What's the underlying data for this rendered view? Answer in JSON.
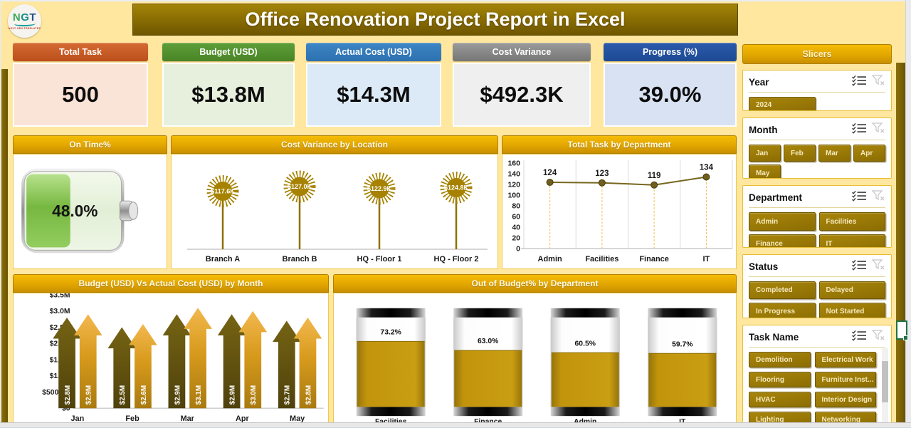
{
  "app": {
    "logo_text": "NGT",
    "logo_subtext": "NEXT GEN TEMPLATES",
    "title": "Office Renovation Project Report in Excel"
  },
  "kpis": [
    {
      "label": "Total Task",
      "value": "500",
      "header_top": "#D56A33",
      "header_bottom": "#BC4F1C",
      "body": "#FAE3D7"
    },
    {
      "label": "Budget (USD)",
      "value": "$13.8M",
      "header_top": "#5E9F38",
      "header_bottom": "#498427",
      "body": "#E6F0DD"
    },
    {
      "label": "Actual Cost (USD)",
      "value": "$14.3M",
      "header_top": "#3E86C6",
      "header_bottom": "#2C70AF",
      "body": "#DCE9F6"
    },
    {
      "label": "Cost Variance",
      "value": "$492.3K",
      "header_top": "#9B9B9B",
      "header_bottom": "#767676",
      "body": "#EFEFEF"
    },
    {
      "label": "Progress (%)",
      "value": "39.0%",
      "header_top": "#2A5AAB",
      "header_bottom": "#1E4A94",
      "body": "#D9E2F3"
    }
  ],
  "chart_data": [
    {
      "id": "on-time-gauge",
      "type": "gauge",
      "style": "horizontal-battery",
      "title": "On Time%",
      "value": 48.0,
      "value_label": "48.0%",
      "min": 0,
      "max": 100,
      "fill_color": "#8CC63E"
    },
    {
      "id": "cost-variance-by-location",
      "type": "lollipop",
      "title": "Cost Variance by Location",
      "categories": [
        "Branch A",
        "Branch B",
        "HQ - Floor 1",
        "HQ - Floor 2"
      ],
      "values": [
        117.6,
        127.0,
        122.9,
        124.8
      ],
      "labels": [
        "$117.6K",
        "$127.0K",
        "$122.9K",
        "$124.8K"
      ],
      "accent": "#A68200"
    },
    {
      "id": "total-task-by-department",
      "type": "line",
      "title": "Total Task by Department",
      "categories": [
        "Admin",
        "Facilities",
        "Finance",
        "IT"
      ],
      "values": [
        124,
        123,
        119,
        134
      ],
      "ylim": [
        0,
        160
      ],
      "ytick_step": 20,
      "grid": "vertical",
      "line_color": "#77661F"
    },
    {
      "id": "budget-vs-actual-by-month",
      "type": "bar",
      "subtype": "arrow",
      "title": "Budget (USD) Vs Actual Cost (USD) by Month",
      "categories": [
        "Jan",
        "Feb",
        "Mar",
        "Apr",
        "May"
      ],
      "series": [
        {
          "name": "Budget (USD)",
          "color": "#6A5A12",
          "values": [
            2.8,
            2.5,
            2.9,
            2.9,
            2.7
          ],
          "labels": [
            "$2.8M",
            "$2.5M",
            "$2.9M",
            "$2.9M",
            "$2.7M"
          ]
        },
        {
          "name": "Actual Cost (USD)",
          "color": "#D79A1C",
          "values": [
            2.9,
            2.6,
            3.1,
            3.0,
            2.8
          ],
          "labels": [
            "$2.9M",
            "$2.6M",
            "$3.1M",
            "$3.0M",
            "$2.8M"
          ]
        }
      ],
      "ylim_musd": [
        0,
        3.5
      ],
      "yticks": [
        "$0",
        "$500.0K",
        "$1.0M",
        "$1.5M",
        "$2.0M",
        "$2.5M",
        "$3.0M",
        "$3.5M"
      ]
    },
    {
      "id": "out-of-budget-by-department",
      "type": "bar",
      "subtype": "battery",
      "title": "Out of Budget% by Department",
      "categories": [
        "Facilities",
        "Finance",
        "Admin",
        "IT"
      ],
      "values": [
        73.2,
        63.0,
        60.5,
        59.7
      ],
      "labels": [
        "73.2%",
        "63.0%",
        "60.5%",
        "59.7%"
      ],
      "fill_color": "#C2940C"
    }
  ],
  "slicers": {
    "panel_title": "Slicers",
    "groups": [
      {
        "name": "Year",
        "items": [
          "2024"
        ],
        "cols": 2
      },
      {
        "name": "Month",
        "items": [
          "Jan",
          "Feb",
          "Mar",
          "Apr",
          "May"
        ],
        "cols": 4
      },
      {
        "name": "Department",
        "items": [
          "Admin",
          "Facilities",
          "Finance",
          "IT"
        ],
        "cols": 2
      },
      {
        "name": "Status",
        "items": [
          "Completed",
          "Delayed",
          "In Progress",
          "Not Started"
        ],
        "cols": 2
      },
      {
        "name": "Task Name",
        "items": [
          "Demolition",
          "Electrical Work",
          "Flooring",
          "Furniture Inst...",
          "HVAC",
          "Interior Design",
          "Lighting",
          "Networking"
        ],
        "cols": 2,
        "scrollbar": true
      }
    ]
  },
  "colors": {
    "background": "#FFE79F",
    "gold_header_top": "#F5BC05",
    "gold_header_bottom": "#C98F00",
    "frame_gold": "#7A6205",
    "slicer_button": "#997807",
    "slicer_button_text": "#F6E9BC",
    "selection_green": "#217346"
  }
}
